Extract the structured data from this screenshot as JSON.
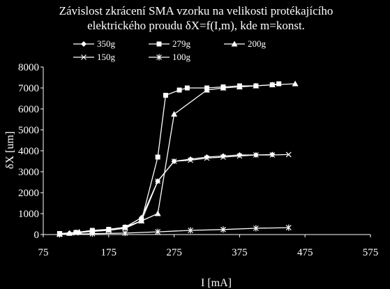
{
  "chart_data": {
    "type": "line",
    "title_lines": [
      "Závislost zkrácení SMA vzorku na velikosti protékajícího",
      "elektrického proudu δX=f(I,m), kde m=konst."
    ],
    "xlabel": "I [mA]",
    "ylabel": "δX [um]",
    "xlim": [
      75,
      575
    ],
    "ylim": [
      0,
      8000
    ],
    "xticks": [
      75,
      175,
      275,
      375,
      475,
      575
    ],
    "yticks": [
      0,
      1000,
      2000,
      3000,
      4000,
      5000,
      6000,
      7000,
      8000
    ],
    "grid": false,
    "legend_position": "top",
    "series": [
      {
        "name": "350g",
        "marker": "diamond",
        "x": [
          100,
          115,
          125,
          150,
          175,
          200,
          225,
          250,
          275,
          300,
          325,
          350,
          375,
          400,
          425
        ],
        "y": [
          30,
          70,
          110,
          150,
          220,
          350,
          800,
          2550,
          3500,
          3600,
          3700,
          3750,
          3800,
          3800,
          3820
        ]
      },
      {
        "name": "279g",
        "marker": "square",
        "x": [
          100,
          125,
          150,
          175,
          200,
          225,
          250,
          262,
          283,
          295,
          325,
          350,
          375,
          400,
          425,
          435
        ],
        "y": [
          50,
          100,
          200,
          250,
          350,
          650,
          3700,
          6650,
          6900,
          7000,
          7000,
          7050,
          7100,
          7100,
          7150,
          7200
        ]
      },
      {
        "name": "200g",
        "marker": "triangle",
        "x": [
          100,
          115,
          130,
          150,
          175,
          200,
          225,
          250,
          275,
          325,
          350,
          375,
          400,
          425,
          460
        ],
        "y": [
          20,
          60,
          120,
          170,
          230,
          350,
          650,
          1000,
          5750,
          6900,
          7000,
          7050,
          7100,
          7150,
          7200
        ]
      },
      {
        "name": "150g",
        "marker": "x",
        "x": [
          100,
          125,
          150,
          175,
          200,
          225,
          250,
          275,
          300,
          325,
          350,
          375,
          400,
          425,
          450
        ],
        "y": [
          20,
          80,
          150,
          200,
          300,
          650,
          2550,
          3500,
          3550,
          3650,
          3700,
          3750,
          3800,
          3800,
          3820
        ]
      },
      {
        "name": "100g",
        "marker": "asterisk",
        "x": [
          100,
          150,
          200,
          250,
          300,
          350,
          400,
          450
        ],
        "y": [
          10,
          40,
          70,
          130,
          200,
          240,
          300,
          330
        ]
      }
    ]
  }
}
